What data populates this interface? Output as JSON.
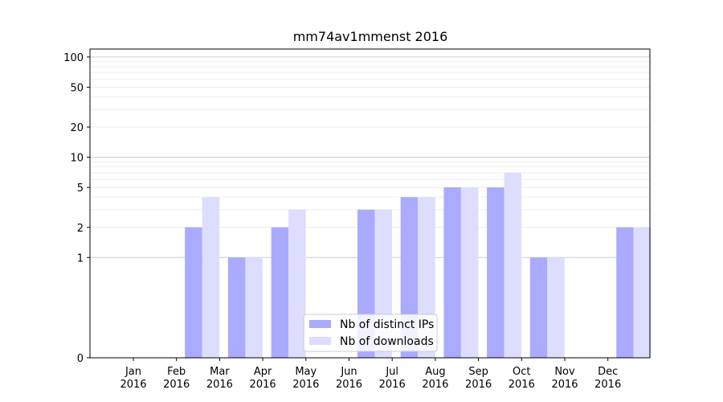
{
  "chart_data": {
    "type": "bar",
    "title": "mm74av1mmenst 2016",
    "categories": [
      [
        "Jan",
        "2016"
      ],
      [
        "Feb",
        "2016"
      ],
      [
        "Mar",
        "2016"
      ],
      [
        "Apr",
        "2016"
      ],
      [
        "May",
        "2016"
      ],
      [
        "Jun",
        "2016"
      ],
      [
        "Jul",
        "2016"
      ],
      [
        "Aug",
        "2016"
      ],
      [
        "Sep",
        "2016"
      ],
      [
        "Oct",
        "2016"
      ],
      [
        "Nov",
        "2016"
      ],
      [
        "Dec",
        "2016"
      ]
    ],
    "series": [
      {
        "name": "Nb of distinct IPs",
        "color": "#aaaaff",
        "values": [
          0,
          2,
          1,
          2,
          0,
          3,
          4,
          5,
          5,
          1,
          0,
          2
        ]
      },
      {
        "name": "Nb of downloads",
        "color": "#ddddff",
        "values": [
          0,
          4,
          1,
          3,
          0,
          3,
          4,
          5,
          7,
          1,
          0,
          2
        ]
      }
    ],
    "yscale": "symlog",
    "ylim": [
      0,
      120
    ],
    "yticks": [
      {
        "value": 0,
        "label": "0"
      },
      {
        "value": 1,
        "label": "1"
      },
      {
        "value": 2,
        "label": "2"
      },
      {
        "value": 5,
        "label": "5"
      },
      {
        "value": 10,
        "label": "10"
      },
      {
        "value": 20,
        "label": "20"
      },
      {
        "value": 50,
        "label": "50"
      },
      {
        "value": 100,
        "label": "100"
      }
    ],
    "grid": true,
    "legend_position": "lower-center"
  }
}
